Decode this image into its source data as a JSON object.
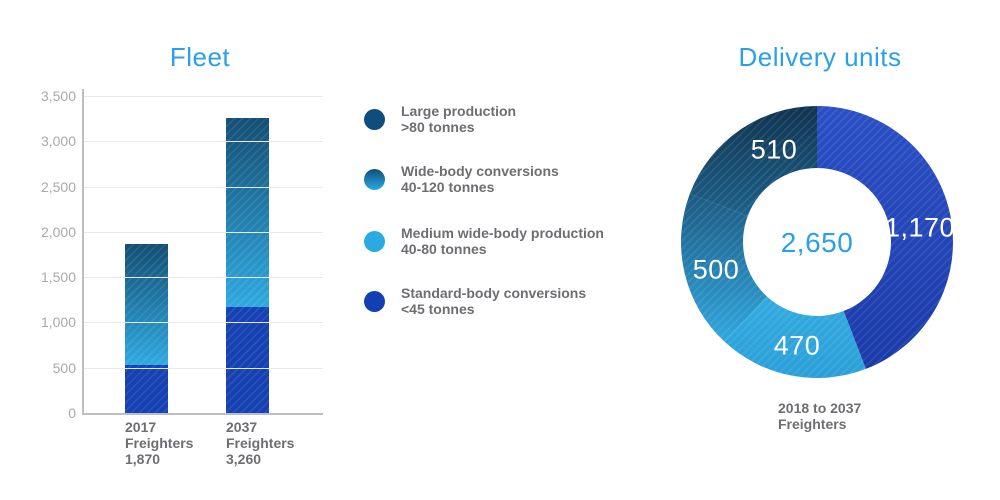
{
  "colors": {
    "title_blue": "#29a0e8",
    "light_blue": "#29abe2",
    "royal_blue": "#1541b2",
    "dark_navy": "#0f4d7c",
    "bar_gradient_top": "#144e74",
    "bar_gradient_bottom": "#2fa9e0",
    "axis_gray": "#bcbec0",
    "tick_label_gray": "#a7a9ac",
    "text_gray": "#6d6e71",
    "gridline_gray": "#e8e9ea"
  },
  "legend": {
    "items": [
      {
        "title": "Large production",
        "subtitle": ">80 tonnes",
        "color": "#0f4d7c"
      },
      {
        "title": "Wide-body conversions",
        "subtitle": "40-120 tonnes",
        "colors": [
          "#0f4d7c",
          "#29abe2"
        ]
      },
      {
        "title": "Medium wide-body production",
        "subtitle": "40-80 tonnes",
        "color": "#29abe2"
      },
      {
        "title": "Standard-body conversions",
        "subtitle": "<45 tonnes",
        "color": "#1240b2"
      }
    ]
  },
  "chart_data": [
    {
      "type": "bar",
      "title": "Fleet",
      "stacked": true,
      "categories": [
        {
          "year": "2017",
          "label": "Freighters",
          "total": "1,870"
        },
        {
          "year": "2037",
          "label": "Freighters",
          "total": "3,260"
        }
      ],
      "series": [
        {
          "name": "Standard-body conversions <45 tonnes",
          "color": "#1541b2",
          "values": [
            530,
            1170
          ]
        },
        {
          "name": "Medium wide-body production + Wide-body conversions + Large production (rendered as one continuous light-to-dark gradient)",
          "color_gradient": [
            "#2fa9e0",
            "#144e74"
          ],
          "values": [
            1340,
            2090
          ]
        }
      ],
      "totals": [
        1870,
        3260
      ],
      "ylim": [
        0,
        3500
      ],
      "ytick_step": 500,
      "ytick_labels": [
        "0",
        "500",
        "1,000",
        "1,500",
        "2,000",
        "2,500",
        "3,000",
        "3,500"
      ],
      "grid": true
    },
    {
      "type": "donut",
      "title": "Delivery units",
      "center_label": "2,650",
      "caption_lines": [
        "2018 to 2037",
        "Freighters"
      ],
      "start_angle_deg": 0,
      "direction": "clockwise",
      "slices": [
        {
          "label": "Standard-body conversions",
          "value": 1170,
          "display": "1,170",
          "fill_from": "#2b50c6",
          "fill_to": "#1a3aa8"
        },
        {
          "label": "Medium wide-body production",
          "value": 470,
          "display": "470",
          "fill_from": "#33aadf",
          "fill_to": "#2aa0d8"
        },
        {
          "label": "Wide-body conversions",
          "value": 500,
          "display": "500",
          "fill_from": "#1c5a82",
          "fill_to": "#30a7de"
        },
        {
          "label": "Large production",
          "value": 510,
          "display": "510",
          "fill_from": "#103350",
          "fill_to": "#1d6189"
        }
      ]
    }
  ]
}
